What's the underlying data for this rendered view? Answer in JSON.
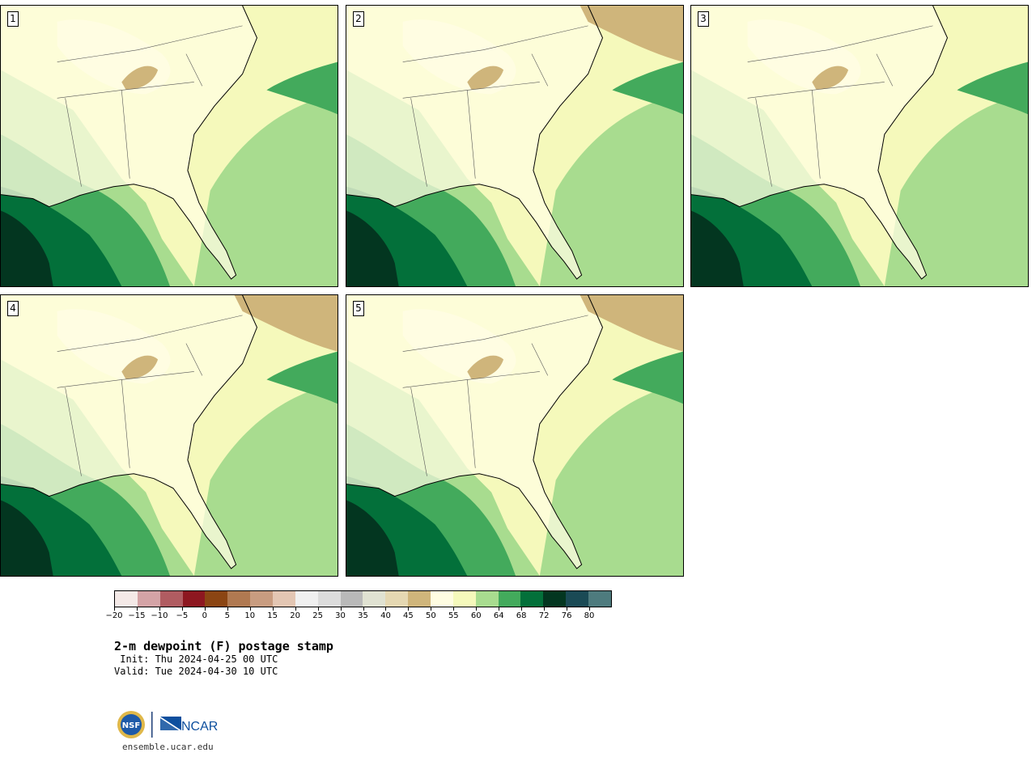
{
  "panels": [
    {
      "label": "1"
    },
    {
      "label": "2"
    },
    {
      "label": "3"
    },
    {
      "label": "4"
    },
    {
      "label": "5"
    }
  ],
  "colorbar": {
    "ticks": [
      "−20",
      "−15",
      "−10",
      "−5",
      "0",
      "5",
      "10",
      "15",
      "20",
      "25",
      "30",
      "35",
      "40",
      "45",
      "50",
      "55",
      "60",
      "64",
      "68",
      "72",
      "76",
      "80"
    ],
    "colors": [
      "#f4e9e7",
      "#d4a3a6",
      "#b05c61",
      "#8d1720",
      "#8b4513",
      "#b07951",
      "#c89c80",
      "#e3c6b3",
      "#f0f0f0",
      "#dcdcdc",
      "#b9b9b9",
      "#e0e2d2",
      "#e5d8b2",
      "#cfb57b",
      "#fffde2",
      "#f5f9bb",
      "#a8dc8f",
      "#43aa5c",
      "#03703a",
      "#033620",
      "#1a4a55",
      "#4e7b7e"
    ]
  },
  "title": "2-m dewpoint (F) postage stamp",
  "init": " Init: Thu 2024-04-25 00 UTC",
  "valid": "Valid: Tue 2024-04-30 10 UTC",
  "footer": {
    "nsf_text": "NSF",
    "ncar_text": "NCAR",
    "site": "ensemble.ucar.edu"
  }
}
